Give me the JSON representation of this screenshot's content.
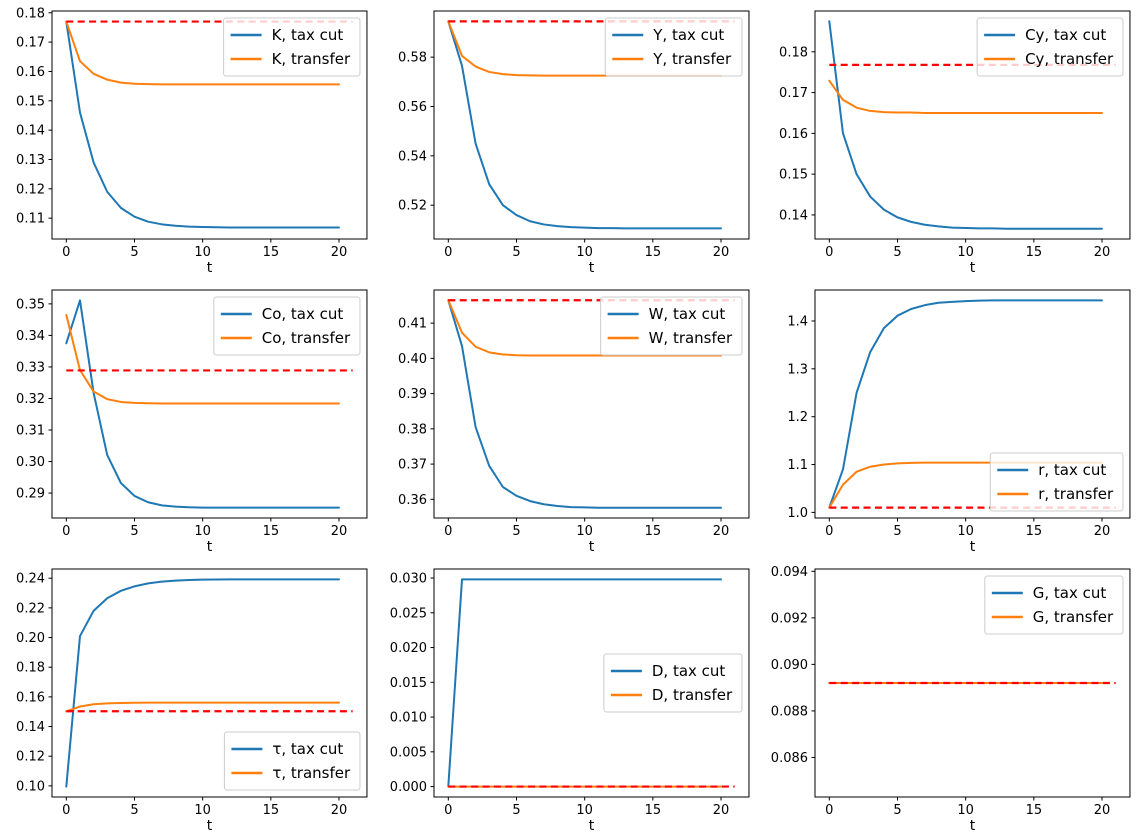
{
  "figure": {
    "xlabel": "t",
    "x_ticks": [
      0,
      5,
      10,
      15,
      20
    ],
    "xlim": [
      -1.05,
      22.05
    ],
    "t": [
      0,
      1,
      2,
      3,
      4,
      5,
      6,
      7,
      8,
      9,
      10,
      11,
      12,
      13,
      14,
      15,
      16,
      17,
      18,
      19,
      20
    ],
    "steady_x": [
      0,
      21
    ],
    "colors": {
      "tax_cut": "#1f77b4",
      "transfer": "#ff7f0e",
      "steady_state": "#ff0000",
      "spine": "#000000",
      "legend_border": "#cccccc",
      "legend_bg": "#ffffff"
    }
  },
  "chart_data": [
    {
      "name": "K",
      "type": "line",
      "xlabel": "t",
      "ylim": [
        0.1029,
        0.1806
      ],
      "yticks": [
        0.11,
        0.12,
        0.13,
        0.14,
        0.15,
        0.16,
        0.17,
        0.18
      ],
      "ydecimals": 2,
      "steady_state": 0.177,
      "legend": {
        "loc": "upper-right",
        "entries": [
          {
            "label": "K, tax cut",
            "color": "tax_cut"
          },
          {
            "label": "K, transfer",
            "color": "transfer"
          }
        ]
      },
      "series": [
        {
          "name": "K, tax cut",
          "color": "tax_cut",
          "values": [
            0.177,
            0.146,
            0.129,
            0.119,
            0.1135,
            0.1105,
            0.1088,
            0.1079,
            0.1074,
            0.1071,
            0.107,
            0.1069,
            0.1068,
            0.1068,
            0.1068,
            0.1068,
            0.1068,
            0.1068,
            0.1068,
            0.1068,
            0.1068
          ]
        },
        {
          "name": "K, transfer",
          "color": "transfer",
          "values": [
            0.177,
            0.1635,
            0.1592,
            0.1572,
            0.1562,
            0.1558,
            0.1557,
            0.1556,
            0.1556,
            0.1556,
            0.1556,
            0.1556,
            0.1556,
            0.1556,
            0.1556,
            0.1556,
            0.1556,
            0.1556,
            0.1556,
            0.1556,
            0.1556
          ]
        }
      ]
    },
    {
      "name": "Y",
      "type": "line",
      "xlabel": "t",
      "ylim": [
        0.5063,
        0.5987
      ],
      "yticks": [
        0.52,
        0.54,
        0.56,
        0.58
      ],
      "ydecimals": 2,
      "steady_state": 0.5945,
      "legend": {
        "loc": "upper-right",
        "entries": [
          {
            "label": "Y, tax cut",
            "color": "tax_cut"
          },
          {
            "label": "Y, transfer",
            "color": "transfer"
          }
        ]
      },
      "series": [
        {
          "name": "Y, tax cut",
          "color": "tax_cut",
          "values": [
            0.5945,
            0.5765,
            0.545,
            0.5285,
            0.52,
            0.516,
            0.5135,
            0.5122,
            0.5115,
            0.5111,
            0.5109,
            0.5107,
            0.5107,
            0.5106,
            0.5106,
            0.5106,
            0.5106,
            0.5106,
            0.5106,
            0.5106,
            0.5106
          ]
        },
        {
          "name": "Y, transfer",
          "color": "transfer",
          "values": [
            0.5945,
            0.5805,
            0.5762,
            0.574,
            0.5731,
            0.5727,
            0.5726,
            0.5725,
            0.5725,
            0.5725,
            0.5725,
            0.5725,
            0.5725,
            0.5725,
            0.5725,
            0.5725,
            0.5725,
            0.5725,
            0.5725,
            0.5725,
            0.5725
          ]
        }
      ]
    },
    {
      "name": "Cy",
      "type": "line",
      "xlabel": "t",
      "ylim": [
        0.1341,
        0.19
      ],
      "yticks": [
        0.14,
        0.15,
        0.16,
        0.17,
        0.18
      ],
      "ydecimals": 2,
      "steady_state": 0.1768,
      "legend": {
        "loc": "upper-right",
        "entries": [
          {
            "label": "Cy, tax cut",
            "color": "tax_cut"
          },
          {
            "label": "Cy, transfer",
            "color": "transfer"
          }
        ]
      },
      "series": [
        {
          "name": "Cy, tax cut",
          "color": "tax_cut",
          "values": [
            0.1875,
            0.16,
            0.15,
            0.1445,
            0.1413,
            0.1394,
            0.1383,
            0.1376,
            0.1372,
            0.1369,
            0.1368,
            0.1367,
            0.1367,
            0.1366,
            0.1366,
            0.1366,
            0.1366,
            0.1366,
            0.1366,
            0.1366,
            0.1366
          ]
        },
        {
          "name": "Cy, transfer",
          "color": "transfer",
          "values": [
            0.1729,
            0.1682,
            0.1663,
            0.1655,
            0.1652,
            0.1651,
            0.1651,
            0.165,
            0.165,
            0.165,
            0.165,
            0.165,
            0.165,
            0.165,
            0.165,
            0.165,
            0.165,
            0.165,
            0.165,
            0.165,
            0.165
          ]
        }
      ]
    },
    {
      "name": "Co",
      "type": "line",
      "xlabel": "t",
      "ylim": [
        0.2821,
        0.3544
      ],
      "yticks": [
        0.29,
        0.3,
        0.31,
        0.32,
        0.33,
        0.34,
        0.35
      ],
      "ydecimals": 2,
      "steady_state": 0.3289,
      "legend": {
        "loc": "upper-right",
        "entries": [
          {
            "label": "Co, tax cut",
            "color": "tax_cut"
          },
          {
            "label": "Co, transfer",
            "color": "transfer"
          }
        ]
      },
      "series": [
        {
          "name": "Co, tax cut",
          "color": "tax_cut",
          "values": [
            0.3375,
            0.3511,
            0.3218,
            0.3021,
            0.2932,
            0.2891,
            0.2871,
            0.2861,
            0.2857,
            0.2855,
            0.2854,
            0.2854,
            0.2854,
            0.2854,
            0.2854,
            0.2854,
            0.2854,
            0.2854,
            0.2854,
            0.2854,
            0.2854
          ]
        },
        {
          "name": "Co, transfer",
          "color": "transfer",
          "values": [
            0.3465,
            0.329,
            0.3222,
            0.3198,
            0.3189,
            0.3186,
            0.3185,
            0.3184,
            0.3184,
            0.3184,
            0.3184,
            0.3184,
            0.3184,
            0.3184,
            0.3184,
            0.3184,
            0.3184,
            0.3184,
            0.3184,
            0.3184,
            0.3184
          ]
        }
      ]
    },
    {
      "name": "W",
      "type": "line",
      "xlabel": "t",
      "ylim": [
        0.3547,
        0.4194
      ],
      "yticks": [
        0.36,
        0.37,
        0.38,
        0.39,
        0.4,
        0.41
      ],
      "ydecimals": 2,
      "steady_state": 0.4165,
      "legend": {
        "loc": "upper-right",
        "entries": [
          {
            "label": "W, tax cut",
            "color": "tax_cut"
          },
          {
            "label": "W, transfer",
            "color": "transfer"
          }
        ]
      },
      "series": [
        {
          "name": "W, tax cut",
          "color": "tax_cut",
          "values": [
            0.4165,
            0.4035,
            0.3805,
            0.3695,
            0.3635,
            0.361,
            0.3595,
            0.3586,
            0.3581,
            0.3578,
            0.3577,
            0.3576,
            0.3576,
            0.3576,
            0.3576,
            0.3576,
            0.3576,
            0.3576,
            0.3576,
            0.3576,
            0.3576
          ]
        },
        {
          "name": "W, transfer",
          "color": "transfer",
          "values": [
            0.4165,
            0.4073,
            0.4033,
            0.4017,
            0.4011,
            0.4009,
            0.4008,
            0.4008,
            0.4008,
            0.4008,
            0.4008,
            0.4008,
            0.4008,
            0.4008,
            0.4008,
            0.4008,
            0.4008,
            0.4008,
            0.4008,
            0.4008,
            0.4008
          ]
        }
      ]
    },
    {
      "name": "r",
      "type": "line",
      "xlabel": "t",
      "ylim": [
        0.9883,
        1.4647
      ],
      "yticks": [
        1.0,
        1.1,
        1.2,
        1.3,
        1.4
      ],
      "ydecimals": 1,
      "steady_state": 1.01,
      "legend": {
        "loc": "lower-right",
        "entries": [
          {
            "label": "r, tax cut",
            "color": "tax_cut"
          },
          {
            "label": "r, transfer",
            "color": "transfer"
          }
        ]
      },
      "series": [
        {
          "name": "r, tax cut",
          "color": "tax_cut",
          "values": [
            1.01,
            1.09,
            1.25,
            1.335,
            1.385,
            1.411,
            1.425,
            1.433,
            1.438,
            1.44,
            1.4415,
            1.4425,
            1.443,
            1.443,
            1.443,
            1.443,
            1.443,
            1.443,
            1.443,
            1.443,
            1.443
          ]
        },
        {
          "name": "r, transfer",
          "color": "transfer",
          "values": [
            1.01,
            1.058,
            1.085,
            1.0955,
            1.1,
            1.1025,
            1.1035,
            1.104,
            1.104,
            1.104,
            1.104,
            1.104,
            1.104,
            1.104,
            1.104,
            1.104,
            1.104,
            1.104,
            1.104,
            1.104,
            1.104
          ]
        }
      ]
    },
    {
      "name": "τ",
      "type": "line",
      "xlabel": "t",
      "ylim": [
        0.0925,
        0.2462
      ],
      "yticks": [
        0.1,
        0.12,
        0.14,
        0.16,
        0.18,
        0.2,
        0.22,
        0.24
      ],
      "ydecimals": 2,
      "steady_state": 0.1503,
      "legend": {
        "loc": "lower-right",
        "entries": [
          {
            "label": "τ, tax cut",
            "color": "tax_cut"
          },
          {
            "label": "τ, transfer",
            "color": "transfer"
          }
        ]
      },
      "series": [
        {
          "name": "τ, tax cut",
          "color": "tax_cut",
          "values": [
            0.0995,
            0.201,
            0.218,
            0.2265,
            0.2315,
            0.2345,
            0.2365,
            0.2377,
            0.2384,
            0.2388,
            0.239,
            0.2391,
            0.2392,
            0.2392,
            0.2392,
            0.2392,
            0.2392,
            0.2392,
            0.2392,
            0.2392,
            0.2392
          ]
        },
        {
          "name": "τ, transfer",
          "color": "transfer",
          "values": [
            0.1503,
            0.1535,
            0.155,
            0.1556,
            0.1559,
            0.156,
            0.1561,
            0.1561,
            0.1561,
            0.1561,
            0.1561,
            0.1561,
            0.1561,
            0.1561,
            0.1561,
            0.1561,
            0.1561,
            0.1561,
            0.1561,
            0.1561,
            0.1561
          ]
        }
      ]
    },
    {
      "name": "D",
      "type": "line",
      "xlabel": "t",
      "ylim": [
        -0.0015,
        0.0313
      ],
      "yticks": [
        0.0,
        0.005,
        0.01,
        0.015,
        0.02,
        0.025,
        0.03
      ],
      "ydecimals": 3,
      "steady_state": 0.0,
      "legend": {
        "loc": "center-right",
        "entries": [
          {
            "label": "D, tax cut",
            "color": "tax_cut"
          },
          {
            "label": "D, transfer",
            "color": "transfer"
          }
        ]
      },
      "series": [
        {
          "name": "D, tax cut",
          "color": "tax_cut",
          "values": [
            0.0,
            0.0298,
            0.0298,
            0.0298,
            0.0298,
            0.0298,
            0.0298,
            0.0298,
            0.0298,
            0.0298,
            0.0298,
            0.0298,
            0.0298,
            0.0298,
            0.0298,
            0.0298,
            0.0298,
            0.0298,
            0.0298,
            0.0298,
            0.0298
          ]
        },
        {
          "name": "D, transfer",
          "color": "transfer",
          "values": [
            0.0,
            0.0,
            0.0,
            0.0,
            0.0,
            0.0,
            0.0,
            0.0,
            0.0,
            0.0,
            0.0,
            0.0,
            0.0,
            0.0,
            0.0,
            0.0,
            0.0,
            0.0,
            0.0,
            0.0,
            0.0
          ]
        }
      ]
    },
    {
      "name": "G",
      "type": "line",
      "xlabel": "t",
      "ylim": [
        0.0843,
        0.0941
      ],
      "yticks": [
        0.086,
        0.088,
        0.09,
        0.092,
        0.094
      ],
      "ydecimals": 3,
      "steady_state": 0.0892,
      "legend": {
        "loc": "upper-right",
        "entries": [
          {
            "label": "G, tax cut",
            "color": "tax_cut"
          },
          {
            "label": "G, transfer",
            "color": "transfer"
          }
        ]
      },
      "series": [
        {
          "name": "G, tax cut",
          "color": "tax_cut",
          "values": [
            0.0892,
            0.0892,
            0.0892,
            0.0892,
            0.0892,
            0.0892,
            0.0892,
            0.0892,
            0.0892,
            0.0892,
            0.0892,
            0.0892,
            0.0892,
            0.0892,
            0.0892,
            0.0892,
            0.0892,
            0.0892,
            0.0892,
            0.0892,
            0.0892
          ]
        },
        {
          "name": "G, transfer",
          "color": "transfer",
          "values": [
            0.0892,
            0.0892,
            0.0892,
            0.0892,
            0.0892,
            0.0892,
            0.0892,
            0.0892,
            0.0892,
            0.0892,
            0.0892,
            0.0892,
            0.0892,
            0.0892,
            0.0892,
            0.0892,
            0.0892,
            0.0892,
            0.0892,
            0.0892,
            0.0892
          ]
        }
      ]
    }
  ]
}
